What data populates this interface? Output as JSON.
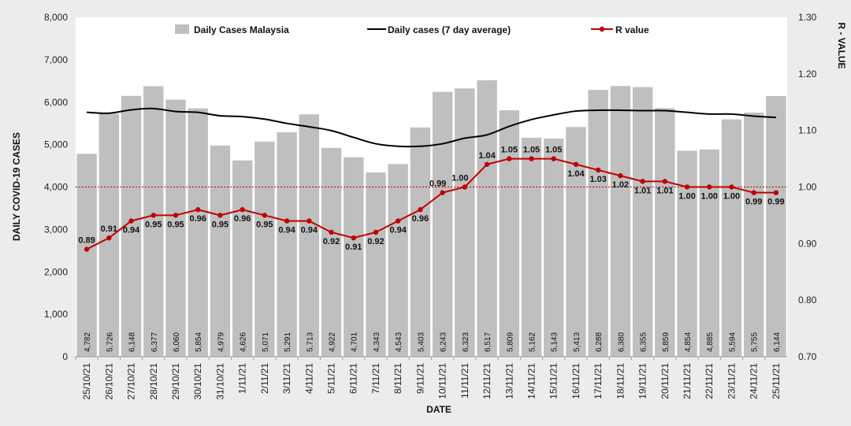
{
  "chart_data": {
    "type": "bar",
    "title": "",
    "xlabel": "DATE",
    "ylabel": "DAILY COVID-19 CASES",
    "y2label": "R - VALUE",
    "ylim": [
      0,
      8000
    ],
    "y2lim": [
      0.7,
      1.3
    ],
    "yticks": [
      "0",
      "1,000",
      "2,000",
      "3,000",
      "4,000",
      "5,000",
      "6,000",
      "7,000",
      "8,000"
    ],
    "y2ticks": [
      "0.70",
      "0.80",
      "0.90",
      "1.00",
      "1.10",
      "1.20",
      "1.30"
    ],
    "grid": false,
    "legend_position": "top",
    "reference_line": {
      "axis": "y2",
      "value": 1.0,
      "style": "dotted",
      "color": "#c00000"
    },
    "categories": [
      "25/10/21",
      "26/10/21",
      "27/10/21",
      "28/10/21",
      "29/10/21",
      "30/10/21",
      "31/10/21",
      "1/11/21",
      "2/11/21",
      "3/11/21",
      "4/11/21",
      "5/11/21",
      "6/11/21",
      "7/11/21",
      "8/11/21",
      "9/11/21",
      "10/11/21",
      "11/11/21",
      "12/11/21",
      "13/11/21",
      "14/11/21",
      "15/11/21",
      "16/11/21",
      "17/11/21",
      "18/11/21",
      "19/11/21",
      "20/11/21",
      "21/11/21",
      "22/11/21",
      "23/11/21",
      "24/11/21",
      "25/11/21"
    ],
    "series": [
      {
        "name": "Daily Cases Malaysia",
        "type": "bar",
        "axis": "y",
        "color": "#bfbfbf",
        "values": [
          4782,
          5726,
          6148,
          6377,
          6060,
          5854,
          4979,
          4626,
          5071,
          5291,
          5713,
          4922,
          4701,
          4343,
          4543,
          5403,
          6243,
          6323,
          6517,
          5809,
          5162,
          5143,
          5413,
          6288,
          6380,
          6355,
          5859,
          4854,
          4885,
          5594,
          5755,
          6144
        ],
        "labels": [
          "4,782",
          "5,726",
          "6,148",
          "6,377",
          "6,060",
          "5,854",
          "4,979",
          "4,626",
          "5,071",
          "5,291",
          "5,713",
          "4,922",
          "4,701",
          "4,343",
          "4,543",
          "5,403",
          "6,243",
          "6,323",
          "6,517",
          "5,809",
          "5,162",
          "5,143",
          "5,413",
          "6,288",
          "6,380",
          "6,355",
          "5,859",
          "4,854",
          "4,885",
          "5,594",
          "5,755",
          "6,144"
        ]
      },
      {
        "name": "Daily cases (7 day average)",
        "type": "line",
        "axis": "y",
        "color": "#000000",
        "values": [
          5760,
          5740,
          5820,
          5850,
          5780,
          5760,
          5680,
          5660,
          5600,
          5500,
          5420,
          5330,
          5170,
          5020,
          4960,
          4960,
          5020,
          5150,
          5230,
          5430,
          5590,
          5700,
          5790,
          5810,
          5810,
          5800,
          5800,
          5760,
          5720,
          5720,
          5670,
          5640
        ]
      },
      {
        "name": "R value",
        "type": "line",
        "axis": "y2",
        "color": "#c00000",
        "values": [
          0.89,
          0.91,
          0.94,
          0.95,
          0.95,
          0.96,
          0.95,
          0.96,
          0.95,
          0.94,
          0.94,
          0.92,
          0.91,
          0.92,
          0.94,
          0.96,
          0.99,
          1.0,
          1.04,
          1.05,
          1.05,
          1.05,
          1.04,
          1.03,
          1.02,
          1.01,
          1.01,
          1.0,
          1.0,
          1.0,
          0.99,
          0.99
        ],
        "labels": [
          "0.89",
          "0.91",
          "0.94",
          "0.95",
          "0.95",
          "0.96",
          "0.95",
          "0.96",
          "0.95",
          "0.94",
          "0.94",
          "0.92",
          "0.91",
          "0.92",
          "0.94",
          "0.96",
          "0.99",
          "1.00",
          "1.04",
          "1.05",
          "1.05",
          "1.05",
          "1.04",
          "1.03",
          "1.02",
          "1.01",
          "1.01",
          "1.00",
          "1.00",
          "1.00",
          "0.99",
          "0.99"
        ]
      }
    ]
  }
}
